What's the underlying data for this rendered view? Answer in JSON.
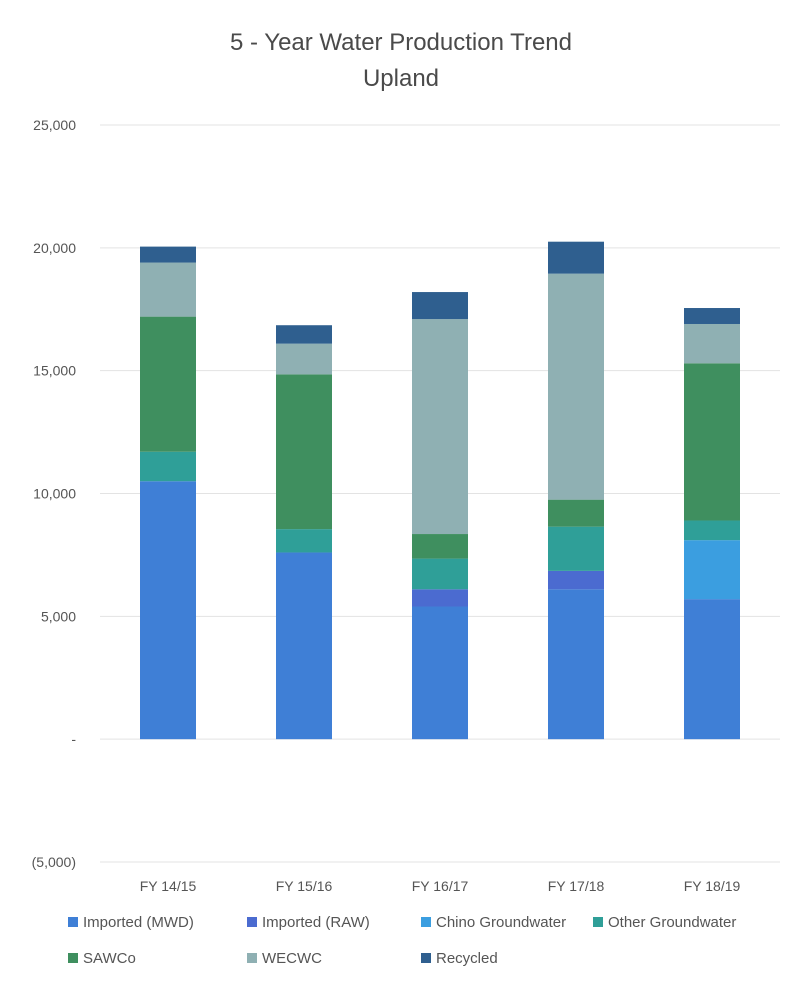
{
  "chart_data": {
    "type": "bar",
    "stacked": true,
    "title": "5 - Year Water Production Trend",
    "subtitle": "Upland",
    "categories": [
      "FY 14/15",
      "FY 15/16",
      "FY 16/17",
      "FY 17/18",
      "FY 18/19"
    ],
    "ylim": [
      -5000,
      25000
    ],
    "yticks": [
      {
        "value": -5000,
        "label": "(5,000)"
      },
      {
        "value": 0,
        "label": "-"
      },
      {
        "value": 5000,
        "label": "5,000"
      },
      {
        "value": 10000,
        "label": "10,000"
      },
      {
        "value": 15000,
        "label": "15,000"
      },
      {
        "value": 20000,
        "label": "20,000"
      },
      {
        "value": 25000,
        "label": "25,000"
      }
    ],
    "grid": true,
    "legend_position": "bottom",
    "series": [
      {
        "name": "Imported (MWD)",
        "color": "#3f7fd6",
        "values": [
          10500,
          7600,
          5400,
          6100,
          5700
        ]
      },
      {
        "name": "Imported (RAW)",
        "color": "#4b6bd0",
        "values": [
          0,
          0,
          700,
          750,
          0
        ]
      },
      {
        "name": "Chino Groundwater",
        "color": "#3b9ee0",
        "values": [
          0,
          0,
          0,
          0,
          2400
        ]
      },
      {
        "name": "Other Groundwater",
        "color": "#2f9f98",
        "values": [
          1200,
          950,
          1250,
          1800,
          800
        ]
      },
      {
        "name": "SAWCo",
        "color": "#3f8f5f",
        "values": [
          5500,
          6300,
          1000,
          1100,
          6400
        ]
      },
      {
        "name": "WECWC",
        "color": "#8fb0b3",
        "values": [
          2200,
          1250,
          8750,
          9200,
          1600
        ]
      },
      {
        "name": "Recycled",
        "color": "#2f5f8f",
        "values": [
          650,
          750,
          1100,
          1300,
          650
        ]
      }
    ]
  }
}
